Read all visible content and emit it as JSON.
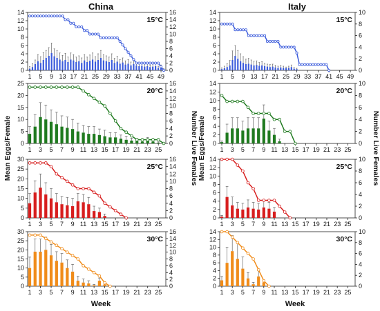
{
  "labels": {
    "china": "China",
    "italy": "Italy",
    "ylabel_left": "Mean Eggs/Female",
    "ylabel_right": "Number Live Females",
    "xlabel": "Week"
  },
  "colors": {
    "t15": "#3b5bdb",
    "t20": "#1f7a1f",
    "t25": "#d71e1e",
    "t30": "#f08c1a"
  },
  "chart_data": [
    {
      "type": "bar",
      "region": "China",
      "temp": "15°C",
      "color": "#3b5bdb",
      "xlim": [
        1,
        50
      ],
      "ylim": [
        0,
        14
      ],
      "y2lim": [
        0,
        16
      ],
      "yticks": [
        0,
        2,
        4,
        6,
        8,
        10,
        12,
        14
      ],
      "y2ticks": [
        0,
        2,
        4,
        6,
        8,
        10,
        12,
        14,
        16
      ],
      "xticks": [
        1,
        5,
        9,
        13,
        17,
        21,
        25,
        29,
        33,
        37,
        41,
        45,
        49
      ],
      "bars": [
        0.4,
        0.8,
        1.5,
        2.2,
        1.8,
        2.5,
        3.0,
        3.5,
        4.2,
        3.4,
        3.0,
        2.6,
        2.2,
        2.5,
        2.0,
        2.6,
        2.4,
        2.0,
        2.2,
        1.8,
        2.4,
        2.0,
        2.3,
        2.6,
        2.1,
        2.5,
        3.0,
        2.4,
        2.2,
        2.0,
        2.5,
        1.8,
        2.1,
        1.6,
        1.9,
        1.4,
        1.6,
        1.2,
        1.5,
        1.2,
        1.0,
        1.1,
        0.9,
        1.0,
        0.8,
        0.9,
        1.0,
        0.6,
        0.8,
        0.2
      ],
      "errors": [
        0.5,
        0.8,
        1.0,
        1.6,
        1.5,
        1.8,
        1.8,
        2.0,
        2.4,
        1.8,
        1.8,
        1.6,
        1.4,
        1.6,
        1.2,
        1.6,
        1.4,
        1.2,
        1.3,
        1.2,
        1.4,
        1.2,
        1.4,
        1.6,
        1.2,
        1.5,
        1.8,
        1.4,
        1.3,
        1.2,
        1.5,
        1.1,
        1.3,
        1.0,
        1.1,
        0.9,
        1.0,
        0.8,
        0.9,
        0.7,
        0.6,
        0.7,
        0.6,
        0.6,
        0.5,
        0.6,
        0.6,
        0.4,
        0.5,
        0.2
      ],
      "live": [
        15,
        15,
        15,
        15,
        15,
        15,
        15,
        15,
        15,
        15,
        15,
        15,
        15,
        14,
        14,
        13,
        13,
        12,
        12,
        12,
        11,
        11,
        10,
        10,
        10,
        10,
        9,
        9,
        9,
        9,
        9,
        9,
        9,
        8,
        7,
        6,
        5,
        4,
        3,
        2,
        2,
        2,
        2,
        2,
        2,
        2,
        2,
        2,
        1,
        0
      ]
    },
    {
      "type": "bar",
      "region": "China",
      "temp": "20°C",
      "color": "#1f7a1f",
      "xlim": [
        1,
        26
      ],
      "ylim": [
        0,
        25
      ],
      "y2lim": [
        0,
        16
      ],
      "yticks": [
        0,
        5,
        10,
        15,
        20,
        25
      ],
      "y2ticks": [
        0,
        2,
        4,
        6,
        8,
        10,
        12,
        14,
        16
      ],
      "xticks": [
        1,
        3,
        5,
        7,
        9,
        11,
        13,
        15,
        17,
        19,
        21,
        23,
        25
      ],
      "bars": [
        4,
        7,
        11,
        10,
        9,
        8,
        7,
        6.5,
        6,
        5,
        4.5,
        4,
        4,
        3.5,
        3,
        2.5,
        2.5,
        2,
        1.5,
        1.2,
        1,
        0.8,
        1.5,
        0.8,
        0.3
      ],
      "errors": [
        3,
        5,
        6,
        6,
        5,
        5,
        4.5,
        4.5,
        4,
        3.5,
        3,
        3,
        3,
        2.5,
        2.5,
        2,
        2,
        1.5,
        1.5,
        1,
        1,
        0.8,
        1,
        0.6,
        0.3
      ],
      "live": [
        15,
        15,
        15,
        15,
        15,
        15,
        15,
        15,
        15,
        15,
        14,
        13,
        12,
        11,
        10,
        8,
        6,
        4,
        3,
        2,
        1,
        1,
        1,
        1,
        1,
        0
      ]
    },
    {
      "type": "bar",
      "region": "China",
      "temp": "25°C",
      "color": "#d71e1e",
      "xlim": [
        1,
        26
      ],
      "ylim": [
        0,
        30
      ],
      "y2lim": [
        0,
        16
      ],
      "yticks": [
        0,
        5,
        10,
        15,
        20,
        25,
        30
      ],
      "y2ticks": [
        0,
        2,
        4,
        6,
        8,
        10,
        12,
        14,
        16
      ],
      "xticks": [
        1,
        3,
        5,
        7,
        9,
        11,
        13,
        15,
        17,
        19,
        21,
        23,
        25
      ],
      "bars": [
        7.5,
        13,
        15.5,
        12,
        10,
        8,
        7,
        6.5,
        6,
        8.5,
        8,
        7,
        3.5,
        3,
        1
      ],
      "errors": [
        5,
        6,
        7,
        6,
        5,
        4.5,
        4,
        4,
        4,
        4,
        4,
        3.5,
        2.5,
        2,
        1
      ],
      "live": [
        15,
        15,
        15,
        15,
        14,
        12,
        11,
        10,
        9,
        8,
        8,
        8,
        7,
        6,
        4,
        3,
        2,
        1,
        0
      ]
    },
    {
      "type": "bar",
      "region": "China",
      "temp": "30°C",
      "color": "#f08c1a",
      "xlim": [
        1,
        26
      ],
      "ylim": [
        0,
        30
      ],
      "y2lim": [
        0,
        16
      ],
      "yticks": [
        0,
        5,
        10,
        15,
        20,
        25,
        30
      ],
      "y2ticks": [
        0,
        2,
        4,
        6,
        8,
        10,
        12,
        14,
        16
      ],
      "xticks": [
        1,
        3,
        5,
        7,
        9,
        11,
        13,
        15,
        17,
        19,
        21,
        23,
        25
      ],
      "bars": [
        10,
        19,
        19,
        20,
        17,
        14,
        13,
        10,
        8,
        3,
        2,
        1.5,
        0.5,
        3,
        1
      ],
      "errors": [
        6,
        7,
        7,
        7,
        6,
        5,
        5,
        4.5,
        4,
        2.5,
        2,
        1.5,
        0.5,
        1.5,
        0.5
      ],
      "live": [
        15,
        15,
        15,
        14,
        13,
        12,
        11,
        10,
        9,
        8,
        6,
        5,
        4,
        3,
        1,
        0
      ]
    },
    {
      "type": "bar",
      "region": "Italy",
      "temp": "15°C",
      "color": "#3b5bdb",
      "xlim": [
        1,
        50
      ],
      "ylim": [
        0,
        14
      ],
      "y2lim": [
        0,
        10
      ],
      "yticks": [
        0,
        2,
        4,
        6,
        8,
        10,
        12,
        14
      ],
      "y2ticks": [
        0,
        2,
        4,
        6,
        8,
        10
      ],
      "xticks": [
        1,
        5,
        9,
        13,
        17,
        21,
        25,
        29,
        33,
        37,
        41,
        45,
        49
      ],
      "bars": [
        0.3,
        0.5,
        0.8,
        1.2,
        2.5,
        3.5,
        2.8,
        2.2,
        1.8,
        1.5,
        1.6,
        1.4,
        1.2,
        1.3,
        1.1,
        1.2,
        1.0,
        0.9,
        0.8,
        0.9,
        0.7,
        0.6,
        0.7,
        0.6,
        0.5,
        0.6,
        0.8,
        0.4,
        0.3
      ],
      "errors": [
        0.3,
        0.5,
        0.8,
        1.2,
        2.2,
        2.5,
        2.0,
        1.8,
        1.5,
        1.2,
        1.3,
        1.1,
        1.0,
        1.0,
        0.8,
        0.9,
        0.7,
        0.6,
        0.6,
        0.6,
        0.5,
        0.4,
        0.5,
        0.4,
        0.3,
        0.4,
        0.5,
        0.3,
        0.2
      ],
      "live": [
        8,
        8,
        8,
        8,
        8,
        7,
        7,
        7,
        7,
        7,
        6,
        6,
        6,
        6,
        6,
        6,
        6,
        5,
        5,
        5,
        5,
        5,
        4,
        4,
        4,
        4,
        4,
        4,
        3,
        1,
        1,
        1,
        1,
        1,
        1,
        1,
        1,
        1,
        1,
        1,
        0
      ]
    },
    {
      "type": "bar",
      "region": "Italy",
      "temp": "20°C",
      "color": "#1f7a1f",
      "xlim": [
        1,
        26
      ],
      "ylim": [
        0,
        14
      ],
      "y2lim": [
        0,
        10
      ],
      "yticks": [
        0,
        2,
        4,
        6,
        8,
        10,
        12,
        14
      ],
      "y2ticks": [
        0,
        2,
        4,
        6,
        8,
        10
      ],
      "xticks": [
        1,
        3,
        5,
        7,
        9,
        11,
        13,
        15,
        17,
        19,
        21,
        23,
        25
      ],
      "bars": [
        0.3,
        2.5,
        3.5,
        3.5,
        3,
        3.5,
        3.5,
        3.5,
        5.8,
        3,
        2,
        0.5
      ],
      "errors": [
        0.3,
        2,
        2.5,
        2.5,
        2.2,
        2.5,
        2.5,
        2.5,
        3.2,
        2.2,
        1.5,
        0.5
      ],
      "live": [
        8,
        7,
        7,
        7,
        7,
        6,
        5,
        5,
        5,
        5,
        4,
        4,
        2,
        2,
        0
      ]
    },
    {
      "type": "bar",
      "region": "Italy",
      "temp": "25°C",
      "color": "#d71e1e",
      "xlim": [
        1,
        26
      ],
      "ylim": [
        0,
        14
      ],
      "y2lim": [
        0,
        10
      ],
      "yticks": [
        0,
        2,
        4,
        6,
        8,
        10,
        12,
        14
      ],
      "y2ticks": [
        0,
        2,
        4,
        6,
        8,
        10
      ],
      "xticks": [
        1,
        3,
        5,
        7,
        9,
        11,
        13,
        15,
        17,
        19,
        21,
        23,
        25
      ],
      "bars": [
        0.3,
        5,
        3,
        2.2,
        2,
        2.5,
        2.2,
        2,
        2.5,
        2.2,
        1.5
      ],
      "errors": [
        0.3,
        2.5,
        2,
        1.5,
        1.5,
        1.8,
        1.5,
        1.5,
        1.8,
        1.5,
        1
      ],
      "live": [
        10,
        10,
        10,
        9,
        8,
        6,
        5,
        3,
        3,
        3,
        3,
        2,
        1,
        0
      ]
    },
    {
      "type": "bar",
      "region": "Italy",
      "temp": "30°C",
      "color": "#f08c1a",
      "xlim": [
        1,
        26
      ],
      "ylim": [
        0,
        14
      ],
      "y2lim": [
        0,
        10
      ],
      "yticks": [
        0,
        2,
        4,
        6,
        8,
        10,
        12,
        14
      ],
      "y2ticks": [
        0,
        2,
        4,
        6,
        8,
        10
      ],
      "xticks": [
        1,
        3,
        5,
        7,
        9,
        11,
        13,
        15,
        17,
        19,
        21,
        23,
        25
      ],
      "bars": [
        1.5,
        6,
        9,
        7,
        4.5,
        2,
        0.5,
        2.5,
        1
      ],
      "errors": [
        1,
        4,
        4,
        4,
        3,
        1.5,
        0.5,
        1.5,
        0.5
      ],
      "live": [
        10,
        10,
        9,
        8,
        7,
        6,
        5,
        3,
        1,
        0
      ]
    }
  ]
}
